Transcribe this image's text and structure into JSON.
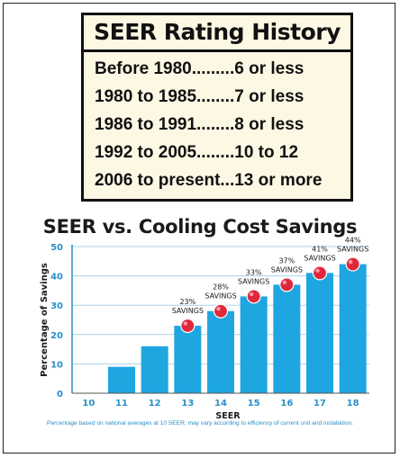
{
  "history": {
    "title": "SEER Rating History",
    "rows": [
      "Before 1980.........6 or less",
      "1980 to 1985........7 or less",
      "1986 to 1991........8 or less",
      "1992 to 2005........10 to 12",
      "2006 to present...13 or more"
    ]
  },
  "chart_data": {
    "type": "bar",
    "title": "SEER vs. Cooling Cost Savings",
    "xlabel": "SEER",
    "ylabel": "Percentage of Savings",
    "categories": [
      "10",
      "11",
      "12",
      "13",
      "14",
      "15",
      "16",
      "17",
      "18"
    ],
    "values": [
      0,
      9,
      16,
      23,
      28,
      33,
      37,
      41,
      44
    ],
    "ylim": [
      0,
      50
    ],
    "yticks": [
      0,
      10,
      20,
      30,
      40,
      50
    ],
    "annotations": [
      {
        "category": "13",
        "percent": "23%",
        "label": "SAVINGS"
      },
      {
        "category": "14",
        "percent": "28%",
        "label": "SAVINGS"
      },
      {
        "category": "15",
        "percent": "33%",
        "label": "SAVINGS"
      },
      {
        "category": "16",
        "percent": "37%",
        "label": "SAVINGS"
      },
      {
        "category": "17",
        "percent": "41%",
        "label": "SAVINGS"
      },
      {
        "category": "18",
        "percent": "44%",
        "label": "SAVINGS"
      }
    ],
    "grid": true,
    "bar_color": "#1ea6e0",
    "axis_color": "#2a8fc8",
    "marker_color": "#e0283c"
  },
  "footnote": "Percentage based on national averages at 10 SEER; may vary according to efficiency of current unit and installation."
}
